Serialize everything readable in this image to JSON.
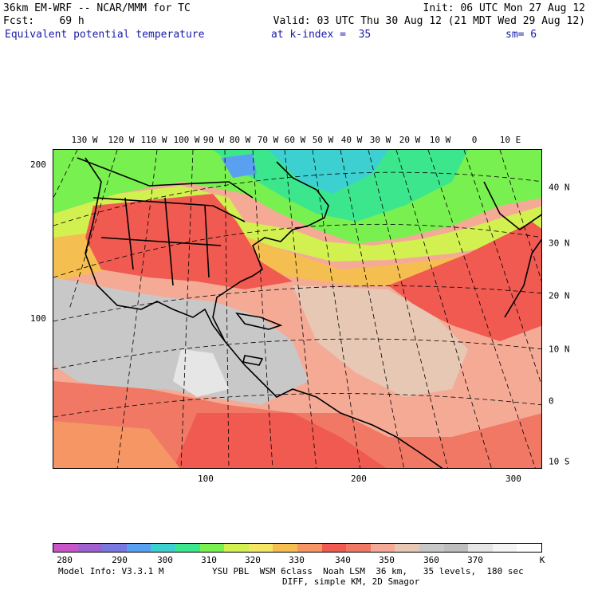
{
  "header": {
    "line1_left": "36km EM-WRF -- NCAR/MMM for TC",
    "line1_right": "Init: 06 UTC Mon 27 Aug 12",
    "line2_left": "Fcst:    69 h",
    "line2_right": "Valid: 03 UTC Thu 30 Aug 12 (21 MDT Wed 29 Aug 12)",
    "field": "Equivalent potential temperature",
    "level": "at k-index =  35",
    "smoothing": "sm= 6"
  },
  "map": {
    "lon_labels": [
      "130 W",
      "120 W",
      "110 W",
      "100 W",
      "90 W",
      "80 W",
      "70 W",
      "60 W",
      "50 W",
      "40 W",
      "30 W",
      "20 W",
      "10 W",
      "0",
      "10 E"
    ],
    "lat_labels": [
      "40 N",
      "30 N",
      "20 N",
      "10 N",
      "0",
      "10 S"
    ],
    "grid_y_labels": [
      "200",
      "100"
    ],
    "grid_x_labels": [
      "100",
      "200",
      "300"
    ]
  },
  "colorbar": {
    "colors": [
      "#c855c8",
      "#a060d0",
      "#7878e0",
      "#5aa0f0",
      "#3cd0d0",
      "#3ce68c",
      "#78f050",
      "#d2f050",
      "#f5e664",
      "#f5be50",
      "#f59664",
      "#f05a50",
      "#f07864",
      "#f5aa96",
      "#e6c8b4",
      "#c8c8c8",
      "#bebebe",
      "#e6e6e6",
      "#f5f5f5",
      "#ffffff"
    ],
    "labels": [
      "280",
      "290",
      "300",
      "310",
      "320",
      "330",
      "340",
      "350",
      "360",
      "370"
    ],
    "unit": "K"
  },
  "footer": {
    "line1_left": "Model Info: V3.3.1 M",
    "line1_right": "YSU PBL  WSM 6class  Noah LSM  36 km,   35 levels,  180 sec",
    "line2": "DIFF, simple KM, 2D Smagor"
  }
}
